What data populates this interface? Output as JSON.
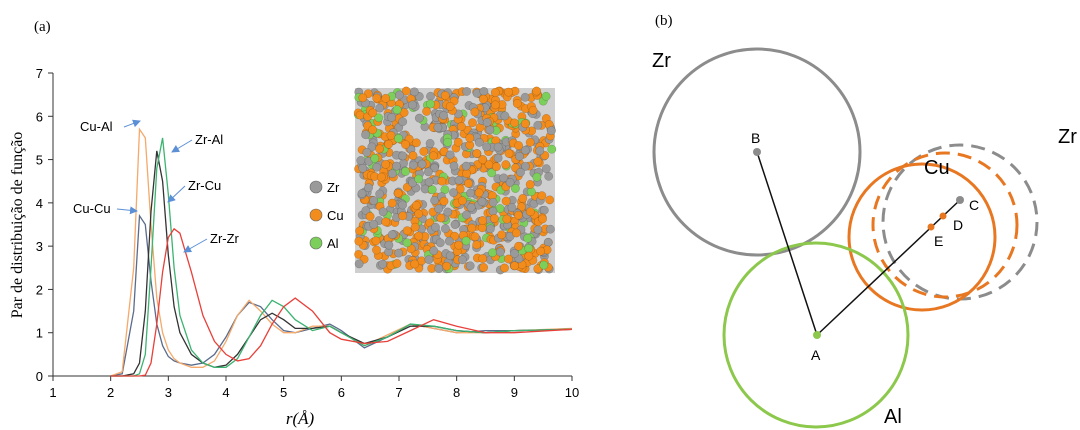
{
  "chart_data": {
    "type": "line",
    "panel_label": "(a)",
    "x_label": "r(Å)",
    "y_label": "Par de distribuição de função",
    "xlim": [
      1,
      10
    ],
    "xticks": [
      1,
      2,
      3,
      4,
      5,
      6,
      7,
      8,
      9,
      10
    ],
    "ylim": [
      0,
      7
    ],
    "yticks": [
      0,
      1,
      2,
      3,
      4,
      5,
      6,
      7
    ],
    "x": [
      2.0,
      2.2,
      2.4,
      2.5,
      2.6,
      2.7,
      2.8,
      2.9,
      3.0,
      3.1,
      3.2,
      3.4,
      3.6,
      3.8,
      4.0,
      4.2,
      4.4,
      4.6,
      4.8,
      5.0,
      5.2,
      5.5,
      5.8,
      6.0,
      6.4,
      6.8,
      7.2,
      7.6,
      8.0,
      8.5,
      9.0,
      10.0
    ],
    "series": [
      {
        "name": "Cu-Cu",
        "color": "#5a6b8c",
        "values": [
          0,
          0.05,
          1.5,
          3.7,
          3.5,
          2.2,
          1.2,
          0.7,
          0.45,
          0.35,
          0.3,
          0.25,
          0.3,
          0.5,
          0.9,
          1.4,
          1.7,
          1.6,
          1.3,
          1.05,
          1.0,
          1.1,
          1.2,
          1.05,
          0.65,
          0.9,
          1.2,
          1.1,
          1.0,
          1.05,
          1.05,
          1.08
        ]
      },
      {
        "name": "Cu-Al",
        "color": "#f5a96a",
        "values": [
          0,
          0.1,
          2.5,
          5.7,
          5.5,
          3.5,
          1.8,
          1.0,
          0.6,
          0.4,
          0.3,
          0.2,
          0.2,
          0.35,
          0.8,
          1.4,
          1.75,
          1.5,
          1.2,
          1.0,
          1.0,
          1.15,
          1.15,
          1.0,
          0.7,
          0.95,
          1.2,
          1.1,
          1.0,
          1.0,
          1.05,
          1.1
        ]
      },
      {
        "name": "Zr-Cu",
        "color": "#333333",
        "values": [
          0,
          0,
          0.05,
          0.3,
          1.5,
          3.8,
          5.2,
          4.5,
          2.8,
          1.6,
          1.0,
          0.5,
          0.3,
          0.2,
          0.25,
          0.5,
          0.9,
          1.3,
          1.45,
          1.3,
          1.1,
          1.1,
          1.15,
          1.0,
          0.75,
          0.9,
          1.15,
          1.15,
          1.05,
          1.0,
          1.05,
          1.08
        ]
      },
      {
        "name": "Zr-Al",
        "color": "#3cb371",
        "values": [
          0,
          0,
          0,
          0.05,
          0.5,
          2.5,
          4.8,
          5.5,
          4.2,
          2.5,
          1.4,
          0.6,
          0.3,
          0.2,
          0.2,
          0.4,
          0.9,
          1.4,
          1.75,
          1.6,
          1.3,
          1.05,
          1.15,
          1.0,
          0.7,
          0.9,
          1.2,
          1.15,
          1.05,
          1.0,
          1.05,
          1.08
        ]
      },
      {
        "name": "Zr-Zr",
        "color": "#e8403a",
        "values": [
          0,
          0,
          0,
          0,
          0.02,
          0.3,
          1.2,
          2.4,
          3.2,
          3.4,
          3.3,
          2.4,
          1.4,
          0.8,
          0.5,
          0.35,
          0.4,
          0.7,
          1.2,
          1.6,
          1.8,
          1.5,
          1.0,
          0.85,
          0.75,
          0.8,
          1.05,
          1.3,
          1.15,
          1.0,
          1.0,
          1.08
        ]
      }
    ],
    "inset_legend": [
      {
        "label": "Zr",
        "color": "#9a9a9a"
      },
      {
        "label": "Cu",
        "color": "#f28c1c"
      },
      {
        "label": "Al",
        "color": "#7ccf5a"
      }
    ]
  },
  "diagram": {
    "panel_label": "(b)",
    "circles": [
      {
        "label": "Zr"
      },
      {
        "label": "Zr"
      },
      {
        "label": "Cu"
      },
      {
        "label": "Al"
      }
    ],
    "points": [
      {
        "label": "A"
      },
      {
        "label": "B"
      },
      {
        "label": "C"
      },
      {
        "label": "D"
      },
      {
        "label": "E"
      }
    ]
  }
}
